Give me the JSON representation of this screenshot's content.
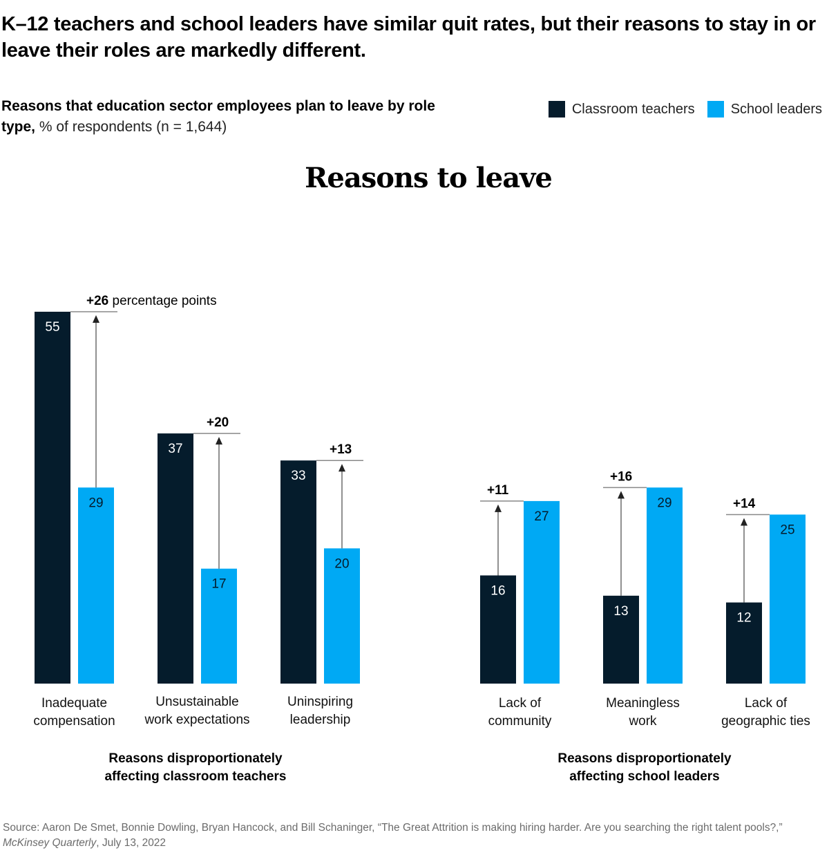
{
  "title": "K–12 teachers and school leaders have similar quit rates, but their reasons to stay in or leave their roles are markedly different.",
  "subtitle": {
    "bold": "Reasons that education sector employees plan to leave by role type,",
    "rest": " % of respondents (n = 1,644)"
  },
  "legend": [
    {
      "label": "Classroom teachers",
      "color": "#051c2c"
    },
    {
      "label": "School leaders",
      "color": "#00a9f4"
    }
  ],
  "source": {
    "prefix": "Source: Aaron De Smet, Bonnie Dowling, Bryan Hancock, and Bill Schaninger, “The Great Attrition is making hiring harder. Are you searching the right talent pools?,” ",
    "publication": "McKinsey Quarterly",
    "suffix": ", July 13, 2022"
  },
  "chart_data": {
    "type": "bar",
    "title": "Reasons to leave",
    "xlabel": "",
    "ylabel": "% of respondents",
    "ylim": [
      0,
      55
    ],
    "grid": false,
    "legend_position": "top-right",
    "difference_unit_label": "percentage points",
    "series": [
      {
        "name": "Classroom teachers",
        "color": "#051c2c"
      },
      {
        "name": "School leaders",
        "color": "#00a9f4"
      }
    ],
    "groups": [
      {
        "label": "Reasons disproportionately affecting classroom teachers",
        "categories": [
          {
            "label": [
              "Inadequate",
              "compensation"
            ],
            "teachers": 55,
            "leaders": 29,
            "difference": "+26"
          },
          {
            "label": [
              "Unsustainable",
              "work expectations"
            ],
            "teachers": 37,
            "leaders": 17,
            "difference": "+20"
          },
          {
            "label": [
              "Uninspiring",
              "leadership"
            ],
            "teachers": 33,
            "leaders": 20,
            "difference": "+13"
          }
        ]
      },
      {
        "label": "Reasons disproportionately affecting school leaders",
        "categories": [
          {
            "label": [
              "Lack of",
              "community"
            ],
            "teachers": 16,
            "leaders": 27,
            "difference": "+11"
          },
          {
            "label": [
              "Meaningless",
              "work"
            ],
            "teachers": 13,
            "leaders": 29,
            "difference": "+16"
          },
          {
            "label": [
              "Lack of",
              "geographic ties"
            ],
            "teachers": 12,
            "leaders": 25,
            "difference": "+14"
          }
        ]
      }
    ]
  }
}
